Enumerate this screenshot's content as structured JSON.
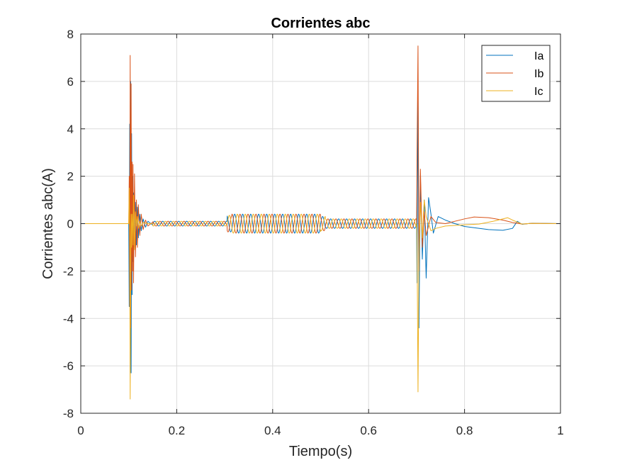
{
  "chart_data": {
    "type": "line",
    "title": "Corrientes abc",
    "xlabel": "Tiempo(s)",
    "ylabel": "Corrientes abc(A)",
    "xlim": [
      0,
      1
    ],
    "ylim": [
      -8,
      8
    ],
    "xticks": [
      0,
      0.2,
      0.4,
      0.6,
      0.8,
      1
    ],
    "xtick_labels": [
      "0",
      "0.2",
      "0.4",
      "0.6",
      "0.8",
      "1"
    ],
    "yticks": [
      -8,
      -6,
      -4,
      -2,
      0,
      2,
      4,
      6,
      8
    ],
    "ytick_labels": [
      "-8",
      "-6",
      "-4",
      "-2",
      "0",
      "2",
      "4",
      "6",
      "8"
    ],
    "grid": true,
    "legend_position": "top-right",
    "series": [
      {
        "name": "Ia",
        "color": "#0072BD",
        "points": [
          [
            0,
            0
          ],
          [
            0.1,
            0
          ],
          [
            0.101,
            -3.5
          ],
          [
            0.102,
            4.2
          ],
          [
            0.103,
            -6.3
          ],
          [
            0.104,
            6.0
          ],
          [
            0.105,
            -6.3
          ],
          [
            0.106,
            3.8
          ],
          [
            0.107,
            -3.0
          ],
          [
            0.108,
            2.0
          ],
          [
            0.109,
            -1.6
          ],
          [
            0.11,
            1.3
          ],
          [
            0.112,
            -1.0
          ],
          [
            0.114,
            0.9
          ],
          [
            0.116,
            -0.9
          ],
          [
            0.118,
            0.7
          ],
          [
            0.12,
            -0.6
          ],
          [
            0.123,
            0.4
          ],
          [
            0.126,
            -0.3
          ],
          [
            0.13,
            0.2
          ],
          [
            0.135,
            -0.15
          ],
          [
            0.14,
            0.1
          ],
          [
            0.15,
            -0.06
          ],
          [
            0.3,
            0
          ],
          [
            0.7,
            0
          ],
          [
            0.701,
            -2.5
          ],
          [
            0.703,
            5.7
          ],
          [
            0.705,
            -4.4
          ],
          [
            0.708,
            2.0
          ],
          [
            0.712,
            -1.5
          ],
          [
            0.716,
            1.0
          ],
          [
            0.72,
            -2.3
          ],
          [
            0.725,
            1.1
          ],
          [
            0.73,
            0.4
          ],
          [
            0.735,
            -0.4
          ],
          [
            0.745,
            0.3
          ],
          [
            0.76,
            0.15
          ],
          [
            0.78,
            0.0
          ],
          [
            0.8,
            -0.12
          ],
          [
            0.85,
            -0.25
          ],
          [
            0.88,
            -0.28
          ],
          [
            0.9,
            -0.2
          ],
          [
            0.91,
            0.1
          ],
          [
            0.92,
            -0.03
          ],
          [
            0.94,
            0.02
          ],
          [
            1,
            0
          ]
        ]
      },
      {
        "name": "Ib",
        "color": "#D95319",
        "points": [
          [
            0,
            0
          ],
          [
            0.1,
            0
          ],
          [
            0.101,
            2.0
          ],
          [
            0.102,
            -3.5
          ],
          [
            0.103,
            7.1
          ],
          [
            0.104,
            -4.4
          ],
          [
            0.105,
            5.9
          ],
          [
            0.106,
            -2.8
          ],
          [
            0.107,
            2.6
          ],
          [
            0.108,
            -2.0
          ],
          [
            0.109,
            2.5
          ],
          [
            0.11,
            -2.5
          ],
          [
            0.112,
            2.1
          ],
          [
            0.114,
            -1.4
          ],
          [
            0.116,
            1.0
          ],
          [
            0.118,
            -1.0
          ],
          [
            0.12,
            0.8
          ],
          [
            0.123,
            -0.5
          ],
          [
            0.126,
            0.4
          ],
          [
            0.13,
            -0.25
          ],
          [
            0.135,
            0.15
          ],
          [
            0.14,
            -0.1
          ],
          [
            0.15,
            0.06
          ],
          [
            0.3,
            0
          ],
          [
            0.7,
            0
          ],
          [
            0.701,
            3.0
          ],
          [
            0.703,
            7.5
          ],
          [
            0.705,
            -2.0
          ],
          [
            0.708,
            2.3
          ],
          [
            0.712,
            -1.0
          ],
          [
            0.716,
            0.5
          ],
          [
            0.72,
            -0.5
          ],
          [
            0.73,
            0.3
          ],
          [
            0.74,
            0.05
          ],
          [
            0.76,
            0.0
          ],
          [
            0.8,
            0.2
          ],
          [
            0.82,
            0.28
          ],
          [
            0.85,
            0.25
          ],
          [
            0.88,
            0.15
          ],
          [
            0.9,
            0.05
          ],
          [
            0.92,
            -0.02
          ],
          [
            0.94,
            0.01
          ],
          [
            1,
            0
          ]
        ]
      },
      {
        "name": "Ic",
        "color": "#EDB120",
        "points": [
          [
            0,
            0
          ],
          [
            0.1,
            0
          ],
          [
            0.101,
            1.5
          ],
          [
            0.102,
            -0.7
          ],
          [
            0.103,
            -7.4
          ],
          [
            0.104,
            -1.6
          ],
          [
            0.105,
            0.4
          ],
          [
            0.106,
            -1.0
          ],
          [
            0.107,
            0.4
          ],
          [
            0.108,
            0.0
          ],
          [
            0.109,
            -0.9
          ],
          [
            0.11,
            1.2
          ],
          [
            0.112,
            -1.1
          ],
          [
            0.114,
            0.5
          ],
          [
            0.116,
            -0.1
          ],
          [
            0.118,
            0.3
          ],
          [
            0.12,
            -0.2
          ],
          [
            0.123,
            0.1
          ],
          [
            0.126,
            -0.1
          ],
          [
            0.13,
            0.05
          ],
          [
            0.14,
            0.0
          ],
          [
            0.3,
            0
          ],
          [
            0.7,
            0
          ],
          [
            0.701,
            -0.5
          ],
          [
            0.703,
            -7.1
          ],
          [
            0.705,
            -1.3
          ],
          [
            0.708,
            0.9
          ],
          [
            0.712,
            -0.6
          ],
          [
            0.716,
            1.0
          ],
          [
            0.72,
            0.3
          ],
          [
            0.73,
            -0.3
          ],
          [
            0.74,
            -0.2
          ],
          [
            0.76,
            -0.1
          ],
          [
            0.8,
            -0.05
          ],
          [
            0.83,
            -0.02
          ],
          [
            0.86,
            0.1
          ],
          [
            0.89,
            0.25
          ],
          [
            0.9,
            0.15
          ],
          [
            0.92,
            -0.02
          ],
          [
            0.94,
            0.01
          ],
          [
            1,
            0
          ]
        ]
      }
    ],
    "oscillation_bands": [
      {
        "x_start": 0.145,
        "x_end": 0.305,
        "amplitude": 0.1
      },
      {
        "x_start": 0.305,
        "x_end": 0.315,
        "amplitude": 0.35
      },
      {
        "x_start": 0.315,
        "x_end": 0.5,
        "amplitude": 0.4
      },
      {
        "x_start": 0.5,
        "x_end": 0.51,
        "amplitude": 0.3
      },
      {
        "x_start": 0.51,
        "x_end": 0.7,
        "amplitude": 0.2
      }
    ]
  }
}
